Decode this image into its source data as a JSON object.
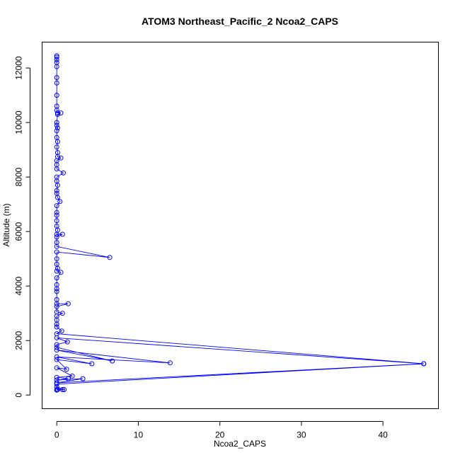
{
  "chart_data": {
    "type": "line",
    "title": "ATOM3 Northeast_Pacific_2 Ncoa2_CAPS",
    "xlabel": "Ncoa2_CAPS",
    "ylabel": "Altitude (m)",
    "xlim": [
      -1.8,
      46.8
    ],
    "ylim": [
      -500,
      12950
    ],
    "x_ticks": [
      0,
      10,
      20,
      30,
      40
    ],
    "y_ticks": [
      0,
      2000,
      4000,
      6000,
      8000,
      10000,
      12000
    ],
    "grid": false,
    "legend": "none",
    "color": "#0000ff",
    "series": [
      {
        "points": [
          {
            "x": 0.0,
            "y": 12450
          },
          {
            "x": 0.0,
            "y": 12400
          },
          {
            "x": 0.0,
            "y": 12300
          },
          {
            "x": 0.0,
            "y": 12200
          },
          {
            "x": 0.0,
            "y": 12050
          },
          {
            "x": 0.0,
            "y": 11650
          },
          {
            "x": 0.0,
            "y": 11450
          },
          {
            "x": 0.0,
            "y": 11000
          },
          {
            "x": 0.0,
            "y": 10600
          },
          {
            "x": 0.0,
            "y": 10450
          },
          {
            "x": 0.1,
            "y": 10350
          },
          {
            "x": 0.5,
            "y": 10350
          },
          {
            "x": 0.1,
            "y": 10300
          },
          {
            "x": 0.0,
            "y": 10000
          },
          {
            "x": 0.0,
            "y": 9900
          },
          {
            "x": 0.1,
            "y": 9800
          },
          {
            "x": 0.0,
            "y": 9700
          },
          {
            "x": 0.0,
            "y": 9450
          },
          {
            "x": 0.1,
            "y": 9300
          },
          {
            "x": 0.0,
            "y": 9100
          },
          {
            "x": 0.1,
            "y": 8900
          },
          {
            "x": 0.1,
            "y": 8750
          },
          {
            "x": 0.5,
            "y": 8700
          },
          {
            "x": 0.0,
            "y": 8600
          },
          {
            "x": 0.0,
            "y": 8450
          },
          {
            "x": 0.0,
            "y": 8300
          },
          {
            "x": 0.8,
            "y": 8150
          },
          {
            "x": 0.0,
            "y": 8000
          },
          {
            "x": 0.0,
            "y": 7850
          },
          {
            "x": 0.1,
            "y": 7700
          },
          {
            "x": 0.0,
            "y": 7500
          },
          {
            "x": 0.0,
            "y": 7400
          },
          {
            "x": 0.1,
            "y": 7250
          },
          {
            "x": 0.4,
            "y": 7100
          },
          {
            "x": 0.0,
            "y": 6950
          },
          {
            "x": 0.0,
            "y": 6700
          },
          {
            "x": 0.0,
            "y": 6600
          },
          {
            "x": 0.0,
            "y": 6400
          },
          {
            "x": 0.0,
            "y": 6200
          },
          {
            "x": 0.1,
            "y": 6050
          },
          {
            "x": 0.0,
            "y": 5900
          },
          {
            "x": 0.7,
            "y": 5900
          },
          {
            "x": 0.0,
            "y": 5800
          },
          {
            "x": 0.0,
            "y": 5600
          },
          {
            "x": 0.0,
            "y": 5450
          },
          {
            "x": 6.5,
            "y": 5050
          },
          {
            "x": 0.0,
            "y": 5250
          },
          {
            "x": 0.0,
            "y": 5000
          },
          {
            "x": 0.0,
            "y": 4800
          },
          {
            "x": 0.1,
            "y": 4650
          },
          {
            "x": 0.0,
            "y": 4550
          },
          {
            "x": 0.5,
            "y": 4500
          },
          {
            "x": 0.0,
            "y": 4300
          },
          {
            "x": 0.0,
            "y": 4050
          },
          {
            "x": 0.0,
            "y": 3900
          },
          {
            "x": 0.0,
            "y": 3800
          },
          {
            "x": 0.0,
            "y": 3500
          },
          {
            "x": 0.0,
            "y": 3350
          },
          {
            "x": 1.4,
            "y": 3350
          },
          {
            "x": 0.0,
            "y": 3250
          },
          {
            "x": 0.0,
            "y": 3050
          },
          {
            "x": 0.7,
            "y": 3000
          },
          {
            "x": 0.0,
            "y": 2900
          },
          {
            "x": 0.0,
            "y": 2750
          },
          {
            "x": 0.0,
            "y": 2600
          },
          {
            "x": 0.0,
            "y": 2500
          },
          {
            "x": 0.6,
            "y": 2350
          },
          {
            "x": 0.0,
            "y": 2250
          },
          {
            "x": 45.0,
            "y": 1150
          },
          {
            "x": 0.0,
            "y": 2100
          },
          {
            "x": 1.3,
            "y": 1950
          },
          {
            "x": 0.0,
            "y": 1850
          },
          {
            "x": 0.0,
            "y": 1750
          },
          {
            "x": 6.8,
            "y": 1250
          },
          {
            "x": 0.0,
            "y": 1650
          },
          {
            "x": 13.9,
            "y": 1180
          },
          {
            "x": 0.0,
            "y": 1400
          },
          {
            "x": 4.3,
            "y": 1150
          },
          {
            "x": 0.0,
            "y": 1300
          },
          {
            "x": 1.2,
            "y": 950
          },
          {
            "x": 0.0,
            "y": 1000
          },
          {
            "x": 1.9,
            "y": 700
          },
          {
            "x": 0.0,
            "y": 650
          },
          {
            "x": 1.4,
            "y": 600
          },
          {
            "x": 0.0,
            "y": 550
          },
          {
            "x": 3.2,
            "y": 600
          },
          {
            "x": 0.0,
            "y": 450
          },
          {
            "x": 45.0,
            "y": 1150
          },
          {
            "x": 0.0,
            "y": 400
          },
          {
            "x": 0.0,
            "y": 300
          },
          {
            "x": 0.9,
            "y": 200
          },
          {
            "x": 0.0,
            "y": 200
          },
          {
            "x": 0.1,
            "y": 200
          },
          {
            "x": 0.7,
            "y": 200
          },
          {
            "x": 0.0,
            "y": 180
          }
        ]
      }
    ]
  }
}
